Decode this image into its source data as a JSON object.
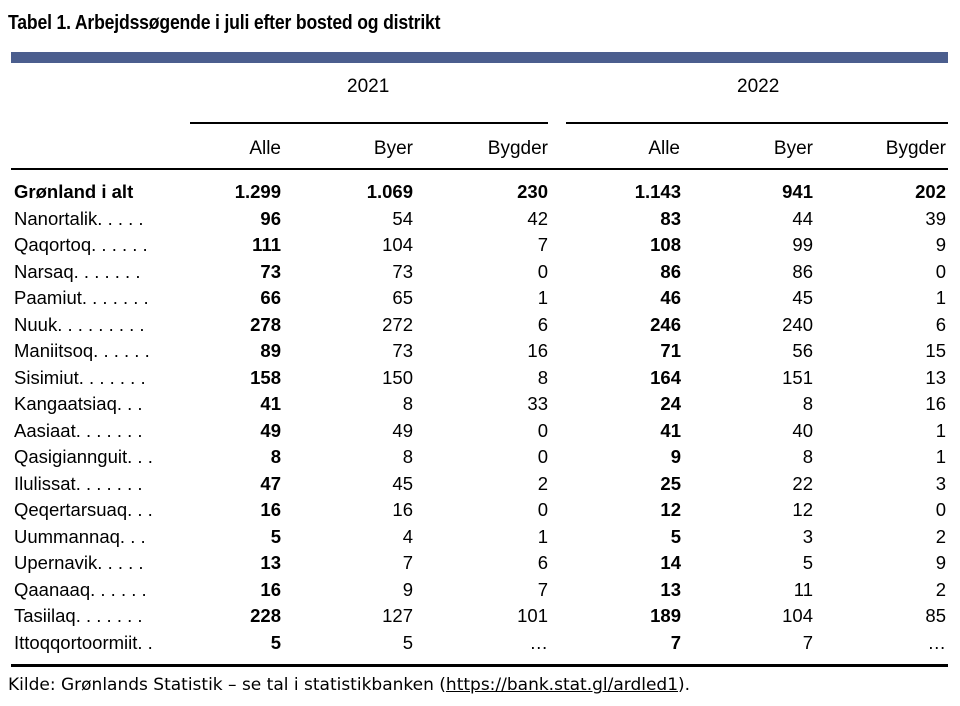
{
  "title": "Tabel 1. Arbejdssøgende i juli efter bosted og distrikt",
  "years": [
    "2021",
    "2022"
  ],
  "columns": [
    "Alle",
    "Byer",
    "Bygder",
    "Alle",
    "Byer",
    "Bygder"
  ],
  "rows": [
    {
      "name": "Grønland i alt",
      "values": [
        "1.299",
        "1.069",
        "230",
        "1.143",
        "941",
        "202"
      ],
      "total": true
    },
    {
      "name": "Nanortalik. . . . .",
      "values": [
        "96",
        "54",
        "42",
        "83",
        "44",
        "39"
      ]
    },
    {
      "name": "Qaqortoq. . . . . .",
      "values": [
        "111",
        "104",
        "7",
        "108",
        "99",
        "9"
      ]
    },
    {
      "name": "Narsaq. . . . . . .",
      "values": [
        "73",
        "73",
        "0",
        "86",
        "86",
        "0"
      ]
    },
    {
      "name": "Paamiut. . . . . . .",
      "values": [
        "66",
        "65",
        "1",
        "46",
        "45",
        "1"
      ]
    },
    {
      "name": "Nuuk. . . . . . . . .",
      "values": [
        "278",
        "272",
        "6",
        "246",
        "240",
        "6"
      ]
    },
    {
      "name": "Maniitsoq. . . . . .",
      "values": [
        "89",
        "73",
        "16",
        "71",
        "56",
        "15"
      ]
    },
    {
      "name": "Sisimiut. . . . . . .",
      "values": [
        "158",
        "150",
        "8",
        "164",
        "151",
        "13"
      ]
    },
    {
      "name": "Kangaatsiaq. . .",
      "values": [
        "41",
        "8",
        "33",
        "24",
        "8",
        "16"
      ]
    },
    {
      "name": "Aasiaat. . . . . . .",
      "values": [
        "49",
        "49",
        "0",
        "41",
        "40",
        "1"
      ]
    },
    {
      "name": "Qasigiannguit. . .",
      "values": [
        "8",
        "8",
        "0",
        "9",
        "8",
        "1"
      ]
    },
    {
      "name": "Ilulissat. . . . . . .",
      "values": [
        "47",
        "45",
        "2",
        "25",
        "22",
        "3"
      ]
    },
    {
      "name": "Qeqertarsuaq. . .",
      "values": [
        "16",
        "16",
        "0",
        "12",
        "12",
        "0"
      ]
    },
    {
      "name": "Uummannaq. . .",
      "values": [
        "5",
        "4",
        "1",
        "5",
        "3",
        "2"
      ]
    },
    {
      "name": "Upernavik. . . . .",
      "values": [
        "13",
        "7",
        "6",
        "14",
        "5",
        "9"
      ]
    },
    {
      "name": "Qaanaaq. . . . . .",
      "values": [
        "16",
        "9",
        "7",
        "13",
        "11",
        "2"
      ]
    },
    {
      "name": "Tasiilaq. . . . . . .",
      "values": [
        "228",
        "127",
        "101",
        "189",
        "104",
        "85"
      ]
    },
    {
      "name": "Ittoqqortoormiit. .",
      "values": [
        "5",
        "5",
        "…",
        "7",
        "7",
        "…"
      ]
    }
  ],
  "source": {
    "prefix": "Kilde: Grønlands Statistik – se tal i statistikbanken (",
    "link": "https://bank.stat.gl/ardled1",
    "suffix": ")."
  },
  "colors": {
    "bar": "#4b5e8e"
  }
}
